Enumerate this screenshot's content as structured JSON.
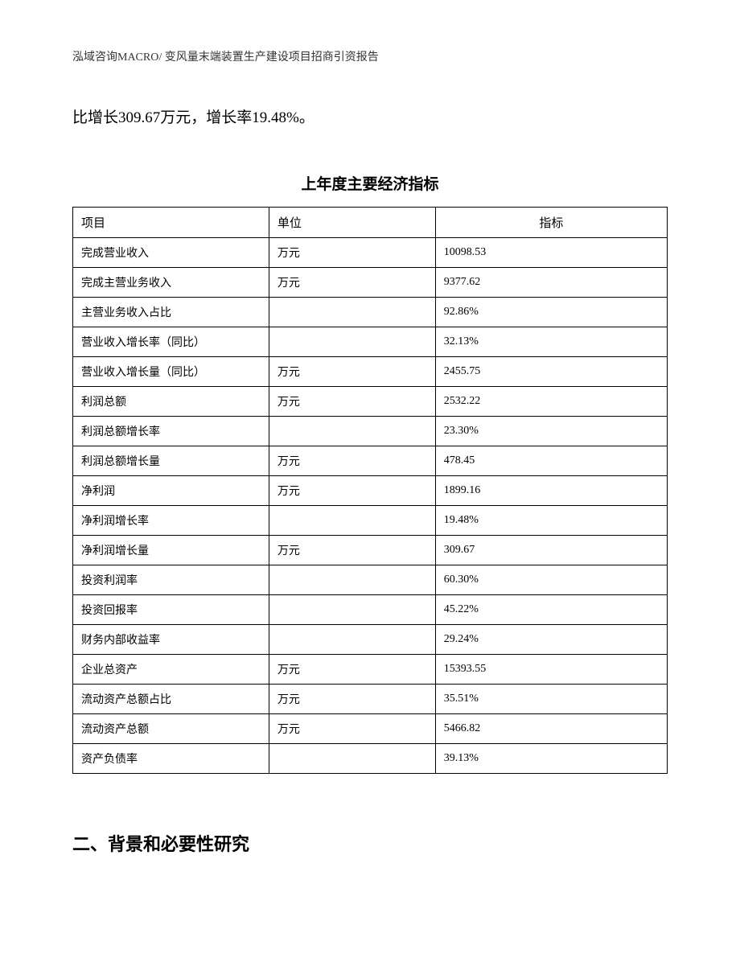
{
  "header": "泓域咨询MACRO/ 变风量末端装置生产建设项目招商引资报告",
  "body_text": "比增长309.67万元，增长率19.48%。",
  "table": {
    "title": "上年度主要经济指标",
    "columns": {
      "item": "项目",
      "unit": "单位",
      "value": "指标"
    },
    "rows": [
      {
        "item": "完成营业收入",
        "unit": "万元",
        "value": "10098.53"
      },
      {
        "item": "完成主营业务收入",
        "unit": "万元",
        "value": "9377.62"
      },
      {
        "item": "主营业务收入占比",
        "unit": "",
        "value": "92.86%"
      },
      {
        "item": "营业收入增长率（同比）",
        "unit": "",
        "value": "32.13%"
      },
      {
        "item": "营业收入增长量（同比）",
        "unit": "万元",
        "value": "2455.75"
      },
      {
        "item": "利润总额",
        "unit": "万元",
        "value": "2532.22"
      },
      {
        "item": "利润总额增长率",
        "unit": "",
        "value": "23.30%"
      },
      {
        "item": "利润总额增长量",
        "unit": "万元",
        "value": "478.45"
      },
      {
        "item": "净利润",
        "unit": "万元",
        "value": "1899.16"
      },
      {
        "item": "净利润增长率",
        "unit": "",
        "value": "19.48%"
      },
      {
        "item": "净利润增长量",
        "unit": "万元",
        "value": "309.67"
      },
      {
        "item": "投资利润率",
        "unit": "",
        "value": "60.30%"
      },
      {
        "item": "投资回报率",
        "unit": "",
        "value": "45.22%"
      },
      {
        "item": "财务内部收益率",
        "unit": "",
        "value": "29.24%"
      },
      {
        "item": "企业总资产",
        "unit": "万元",
        "value": "15393.55"
      },
      {
        "item": "流动资产总额占比",
        "unit": "万元",
        "value": "35.51%"
      },
      {
        "item": "流动资产总额",
        "unit": "万元",
        "value": "5466.82"
      },
      {
        "item": "资产负债率",
        "unit": "",
        "value": "39.13%"
      }
    ]
  },
  "section_heading": "二、背景和必要性研究"
}
